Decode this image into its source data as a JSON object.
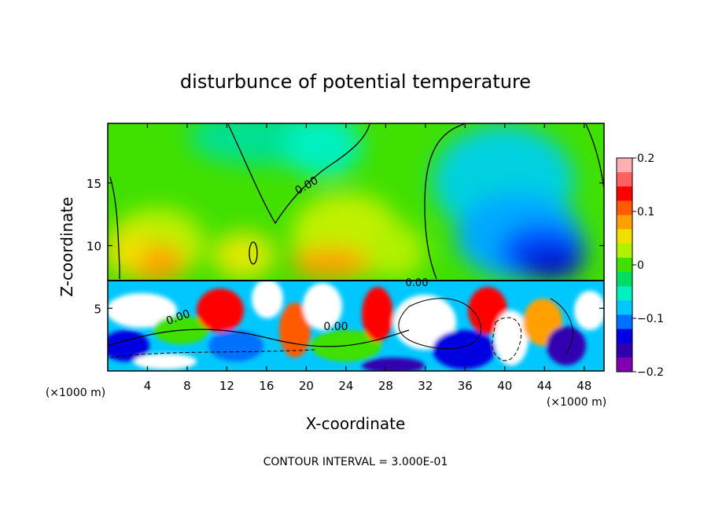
{
  "chart_data": {
    "type": "heatmap",
    "title": "disturbunce of potential temperature",
    "xlabel": "X-coordinate",
    "ylabel": "Z-coordinate",
    "x_unit_left": "(×1000 m)",
    "x_unit_right": "(×1000 m)",
    "xlim": [
      0,
      50
    ],
    "ylim": [
      0,
      19.75
    ],
    "x_ticks": [
      4,
      8,
      12,
      16,
      20,
      24,
      28,
      32,
      36,
      40,
      44,
      48
    ],
    "y_ticks": [
      5,
      10,
      15
    ],
    "colorbar": {
      "range": [
        -0.2,
        0.2
      ],
      "tick_values": [
        0.2,
        0.1,
        0,
        -0.1,
        -0.2
      ],
      "tick_labels": [
        "0.2",
        "0.1",
        "0",
        "−0.1",
        "−0.2"
      ],
      "colors": [
        "#ffb0b0",
        "#ff6060",
        "#ff0000",
        "#ff5a00",
        "#ffa000",
        "#f0e000",
        "#b0f000",
        "#40e000",
        "#00dd60",
        "#00f0c0",
        "#00c8ff",
        "#0070ff",
        "#0000e0",
        "#3000b0",
        "#8000b0"
      ]
    },
    "contour_labels": [
      "0.00",
      "0.00",
      "0.00",
      "0.00"
    ],
    "tropopause_z": 7.3,
    "footer": "CONTOUR INTERVAL = 3.000E-01"
  }
}
